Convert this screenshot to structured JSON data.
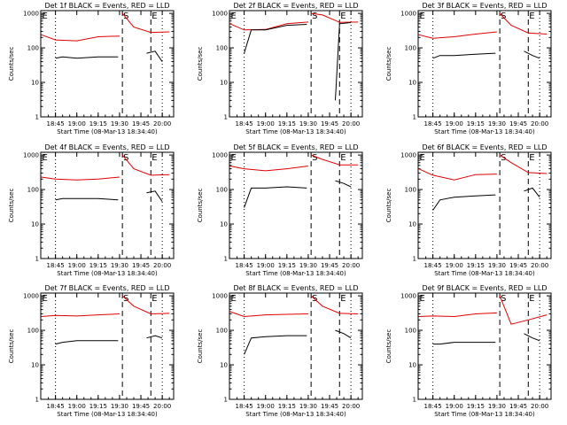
{
  "colors": {
    "events": "#000000",
    "lld": "#e00000",
    "background": "#ffffff"
  },
  "common": {
    "ylabel": "Counts/sec",
    "xlabel": "Start Time (08-Mar-13 18:34:40)",
    "x_ticks": [
      "18:45",
      "19:00",
      "19:15",
      "19:30",
      "19:45",
      "20:00"
    ],
    "y_ticks": [
      "1",
      "10",
      "100",
      "1000"
    ]
  },
  "chart_data": [
    {
      "type": "line",
      "title": "Det 1f BLACK = Events, RED = LLD",
      "markers": [
        {
          "label": "E",
          "x": "18:35"
        },
        {
          "label": "S",
          "x": "19:32"
        },
        {
          "label": "E",
          "x": "19:52"
        }
      ],
      "x_range": [
        "18:34:40",
        "20:08"
      ],
      "ylim": [
        1,
        1200
      ],
      "y_scale": "log",
      "series": [
        {
          "x": [
            "18:35",
            "18:45",
            "19:00",
            "19:15",
            "19:30"
          ],
          "values": [
            240,
            170,
            160,
            210,
            220
          ]
        },
        {
          "x": [
            "19:32",
            "19:40",
            "19:52",
            "20:05"
          ],
          "values": [
            1000,
            400,
            280,
            290
          ]
        },
        {
          "x": [
            "18:45",
            "18:50",
            "19:00",
            "19:15",
            "19:29"
          ],
          "values": [
            50,
            55,
            50,
            55,
            55
          ]
        },
        {
          "x": [
            "19:49",
            "19:55",
            "20:00"
          ],
          "values": [
            70,
            80,
            40
          ]
        }
      ]
    },
    {
      "type": "line",
      "title": "Det 2f BLACK = Events, RED = LLD",
      "markers": [
        {
          "label": "E",
          "x": "18:35"
        },
        {
          "label": "S",
          "x": "19:32"
        },
        {
          "label": "E",
          "x": "19:52"
        }
      ],
      "x_range": [
        "18:34:40",
        "20:08"
      ],
      "ylim": [
        1,
        1200
      ],
      "y_scale": "log",
      "series": [
        {
          "x": [
            "18:35",
            "18:45",
            "19:00",
            "19:15",
            "19:30"
          ],
          "values": [
            500,
            330,
            340,
            500,
            560
          ]
        },
        {
          "x": [
            "19:32",
            "19:40",
            "19:52",
            "20:05"
          ],
          "values": [
            1000,
            900,
            550,
            560
          ]
        },
        {
          "x": [
            "18:45",
            "18:50",
            "19:00",
            "19:15",
            "19:29"
          ],
          "values": [
            70,
            330,
            330,
            450,
            480
          ]
        },
        {
          "x": [
            "19:49",
            "19:52",
            "20:00"
          ],
          "values": [
            3,
            500,
            540
          ]
        }
      ]
    },
    {
      "type": "line",
      "title": "Det 3f BLACK = Events, RED = LLD",
      "markers": [
        {
          "label": "E",
          "x": "18:35"
        },
        {
          "label": "S",
          "x": "19:32"
        },
        {
          "label": "E",
          "x": "19:52"
        }
      ],
      "x_range": [
        "18:34:40",
        "20:08"
      ],
      "ylim": [
        1,
        1200
      ],
      "y_scale": "log",
      "series": [
        {
          "x": [
            "18:35",
            "18:45",
            "19:00",
            "19:15",
            "19:30"
          ],
          "values": [
            240,
            190,
            210,
            250,
            290
          ]
        },
        {
          "x": [
            "19:32",
            "19:40",
            "19:52",
            "20:05"
          ],
          "values": [
            1000,
            450,
            270,
            250
          ]
        },
        {
          "x": [
            "18:45",
            "18:50",
            "19:00",
            "19:15",
            "19:29"
          ],
          "values": [
            50,
            60,
            60,
            65,
            70
          ]
        },
        {
          "x": [
            "19:49",
            "19:55",
            "20:00"
          ],
          "values": [
            80,
            60,
            50
          ]
        }
      ]
    },
    {
      "type": "line",
      "title": "Det 4f BLACK = Events, RED = LLD",
      "markers": [
        {
          "label": "E",
          "x": "18:35"
        },
        {
          "label": "S",
          "x": "19:32"
        },
        {
          "label": "E",
          "x": "19:52"
        }
      ],
      "x_range": [
        "18:34:40",
        "20:08"
      ],
      "ylim": [
        1,
        1200
      ],
      "y_scale": "log",
      "series": [
        {
          "x": [
            "18:35",
            "18:45",
            "19:00",
            "19:15",
            "19:30"
          ],
          "values": [
            230,
            200,
            190,
            200,
            230
          ]
        },
        {
          "x": [
            "19:32",
            "19:40",
            "19:52",
            "20:05"
          ],
          "values": [
            1000,
            400,
            260,
            270
          ]
        },
        {
          "x": [
            "18:45",
            "18:50",
            "19:00",
            "19:15",
            "19:29"
          ],
          "values": [
            50,
            55,
            55,
            55,
            50
          ]
        },
        {
          "x": [
            "19:49",
            "19:55",
            "20:00"
          ],
          "values": [
            80,
            90,
            45
          ]
        }
      ]
    },
    {
      "type": "line",
      "title": "Det 5f BLACK = Events, RED = LLD",
      "markers": [
        {
          "label": "E",
          "x": "18:35"
        },
        {
          "label": "S",
          "x": "19:32"
        },
        {
          "label": "E",
          "x": "19:52"
        }
      ],
      "x_range": [
        "18:34:40",
        "20:08"
      ],
      "ylim": [
        1,
        1200
      ],
      "y_scale": "log",
      "series": [
        {
          "x": [
            "18:35",
            "18:45",
            "19:00",
            "19:15",
            "19:30"
          ],
          "values": [
            480,
            400,
            350,
            400,
            480
          ]
        },
        {
          "x": [
            "19:32",
            "19:40",
            "19:52",
            "20:05"
          ],
          "values": [
            1000,
            750,
            520,
            520
          ]
        },
        {
          "x": [
            "18:45",
            "18:50",
            "19:00",
            "19:15",
            "19:29"
          ],
          "values": [
            30,
            110,
            110,
            120,
            110
          ]
        },
        {
          "x": [
            "19:49",
            "19:55",
            "20:00"
          ],
          "values": [
            180,
            150,
            120
          ]
        }
      ]
    },
    {
      "type": "line",
      "title": "Det 6f BLACK = Events, RED = LLD",
      "markers": [
        {
          "label": "E",
          "x": "18:35"
        },
        {
          "label": "S",
          "x": "19:32"
        },
        {
          "label": "E",
          "x": "19:52"
        }
      ],
      "x_range": [
        "18:34:40",
        "20:08"
      ],
      "ylim": [
        1,
        1200
      ],
      "y_scale": "log",
      "series": [
        {
          "x": [
            "18:35",
            "18:45",
            "19:00",
            "19:15",
            "19:30"
          ],
          "values": [
            400,
            260,
            190,
            270,
            280
          ]
        },
        {
          "x": [
            "19:32",
            "19:40",
            "19:52",
            "20:05"
          ],
          "values": [
            1000,
            600,
            310,
            290
          ]
        },
        {
          "x": [
            "18:45",
            "18:50",
            "19:00",
            "19:15",
            "19:29"
          ],
          "values": [
            25,
            50,
            60,
            65,
            70
          ]
        },
        {
          "x": [
            "19:49",
            "19:55",
            "20:00"
          ],
          "values": [
            90,
            110,
            60
          ]
        }
      ]
    },
    {
      "type": "line",
      "title": "Det 7f BLACK = Events, RED = LLD",
      "markers": [
        {
          "label": "E",
          "x": "18:35"
        },
        {
          "label": "S",
          "x": "19:32"
        },
        {
          "label": "E",
          "x": "19:52"
        }
      ],
      "x_range": [
        "18:34:40",
        "20:08"
      ],
      "ylim": [
        1,
        1200
      ],
      "y_scale": "log",
      "series": [
        {
          "x": [
            "18:35",
            "18:45",
            "19:00",
            "19:15",
            "19:30"
          ],
          "values": [
            250,
            270,
            260,
            280,
            300
          ]
        },
        {
          "x": [
            "19:32",
            "19:40",
            "19:52",
            "20:05"
          ],
          "values": [
            1000,
            500,
            300,
            310
          ]
        },
        {
          "x": [
            "18:45",
            "18:50",
            "19:00",
            "19:15",
            "19:29"
          ],
          "values": [
            40,
            45,
            50,
            50,
            50
          ]
        },
        {
          "x": [
            "19:49",
            "19:55",
            "20:00"
          ],
          "values": [
            60,
            70,
            60
          ]
        }
      ]
    },
    {
      "type": "line",
      "title": "Det 8f BLACK = Events, RED = LLD",
      "markers": [
        {
          "label": "E",
          "x": "18:35"
        },
        {
          "label": "S",
          "x": "19:32"
        },
        {
          "label": "E",
          "x": "19:52"
        }
      ],
      "x_range": [
        "18:34:40",
        "20:08"
      ],
      "ylim": [
        1,
        1200
      ],
      "y_scale": "log",
      "series": [
        {
          "x": [
            "18:35",
            "18:45",
            "19:00",
            "19:15",
            "19:30"
          ],
          "values": [
            350,
            250,
            280,
            290,
            300
          ]
        },
        {
          "x": [
            "19:32",
            "19:40",
            "19:52",
            "20:05"
          ],
          "values": [
            1000,
            500,
            310,
            300
          ]
        },
        {
          "x": [
            "18:45",
            "18:50",
            "19:00",
            "19:15",
            "19:29"
          ],
          "values": [
            20,
            60,
            65,
            70,
            70
          ]
        },
        {
          "x": [
            "19:49",
            "19:55",
            "20:00"
          ],
          "values": [
            100,
            80,
            60
          ]
        }
      ]
    },
    {
      "type": "line",
      "title": "Det 9f BLACK = Events, RED = LLD",
      "markers": [
        {
          "label": "E",
          "x": "18:35"
        },
        {
          "label": "S",
          "x": "19:32"
        },
        {
          "label": "E",
          "x": "19:52"
        }
      ],
      "x_range": [
        "18:34:40",
        "20:08"
      ],
      "ylim": [
        1,
        1200
      ],
      "y_scale": "log",
      "series": [
        {
          "x": [
            "18:35",
            "18:45",
            "19:00",
            "19:15",
            "19:30"
          ],
          "values": [
            250,
            260,
            250,
            300,
            320
          ]
        },
        {
          "x": [
            "19:32",
            "19:40",
            "19:52",
            "20:05"
          ],
          "values": [
            1000,
            150,
            200,
            280
          ]
        },
        {
          "x": [
            "18:45",
            "18:50",
            "19:00",
            "19:15",
            "19:29"
          ],
          "values": [
            40,
            40,
            45,
            45,
            45
          ]
        },
        {
          "x": [
            "19:49",
            "19:55",
            "20:00"
          ],
          "values": [
            80,
            60,
            50
          ]
        }
      ]
    }
  ]
}
